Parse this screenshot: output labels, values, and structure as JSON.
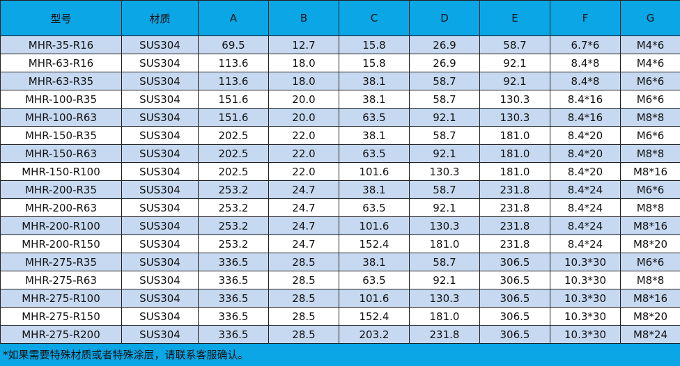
{
  "table": {
    "headers": [
      "型号",
      "材质",
      "A",
      "B",
      "C",
      "D",
      "E",
      "F",
      "G"
    ],
    "rows": [
      [
        "MHR-35-R16",
        "SUS304",
        "69.5",
        "12.7",
        "15.8",
        "26.9",
        "58.7",
        "6.7*6",
        "M4*6"
      ],
      [
        "MHR-63-R16",
        "SUS304",
        "113.6",
        "18.0",
        "15.8",
        "26.9",
        "92.1",
        "8.4*8",
        "M4*6"
      ],
      [
        "MHR-63-R35",
        "SUS304",
        "113.6",
        "18.0",
        "38.1",
        "58.7",
        "92.1",
        "8.4*8",
        "M6*6"
      ],
      [
        "MHR-100-R35",
        "SUS304",
        "151.6",
        "20.0",
        "38.1",
        "58.7",
        "130.3",
        "8.4*16",
        "M6*6"
      ],
      [
        "MHR-100-R63",
        "SUS304",
        "151.6",
        "20.0",
        "63.5",
        "92.1",
        "130.3",
        "8.4*16",
        "M8*8"
      ],
      [
        "MHR-150-R35",
        "SUS304",
        "202.5",
        "22.0",
        "38.1",
        "58.7",
        "181.0",
        "8.4*20",
        "M6*6"
      ],
      [
        "MHR-150-R63",
        "SUS304",
        "202.5",
        "22.0",
        "63.5",
        "92.1",
        "181.0",
        "8.4*20",
        "M8*8"
      ],
      [
        "MHR-150-R100",
        "SUS304",
        "202.5",
        "22.0",
        "101.6",
        "130.3",
        "181.0",
        "8.4*20",
        "M8*16"
      ],
      [
        "MHR-200-R35",
        "SUS304",
        "253.2",
        "24.7",
        "38.1",
        "58.7",
        "231.8",
        "8.4*24",
        "M6*6"
      ],
      [
        "MHR-200-R63",
        "SUS304",
        "253.2",
        "24.7",
        "63.5",
        "92.1",
        "231.8",
        "8.4*24",
        "M8*8"
      ],
      [
        "MHR-200-R100",
        "SUS304",
        "253.2",
        "24.7",
        "101.6",
        "130.3",
        "231.8",
        "8.4*24",
        "M8*16"
      ],
      [
        "MHR-200-R150",
        "SUS304",
        "253.2",
        "24.7",
        "152.4",
        "181.0",
        "231.8",
        "8.4*24",
        "M8*20"
      ],
      [
        "MHR-275-R35",
        "SUS304",
        "336.5",
        "28.5",
        "38.1",
        "58.7",
        "306.5",
        "10.3*30",
        "M6*6"
      ],
      [
        "MHR-275-R63",
        "SUS304",
        "336.5",
        "28.5",
        "63.5",
        "92.1",
        "306.5",
        "10.3*30",
        "M8*8"
      ],
      [
        "MHR-275-R100",
        "SUS304",
        "336.5",
        "28.5",
        "101.6",
        "130.3",
        "306.5",
        "10.3*30",
        "M8*16"
      ],
      [
        "MHR-275-R150",
        "SUS304",
        "336.5",
        "28.5",
        "152.4",
        "181.0",
        "306.5",
        "10.3*30",
        "M8*20"
      ],
      [
        "MHR-275-R200",
        "SUS304",
        "336.5",
        "28.5",
        "203.2",
        "231.8",
        "306.5",
        "10.3*30",
        "M8*24"
      ]
    ]
  },
  "footer": {
    "note": "*如果需要特殊材质或者特殊涂层，请联系客服确认。"
  },
  "colors": {
    "header_bg": "#0aa6e6",
    "row_alt_bg": "#c6d9f1",
    "row_bg": "#ffffff",
    "border": "#1f1f1f"
  }
}
